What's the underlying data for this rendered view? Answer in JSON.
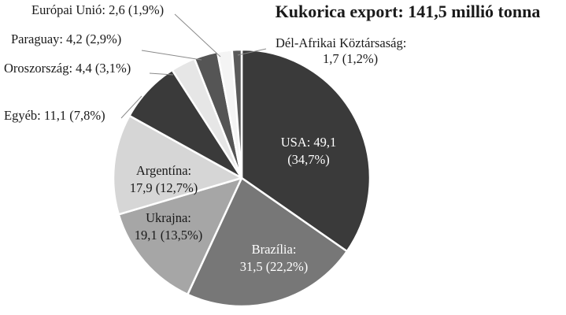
{
  "chart_data": {
    "type": "pie",
    "title": "Kukorica export: 141,5 millió tonna",
    "slices": [
      {
        "label": "USA: 49,1 (34,7%)",
        "name": "USA",
        "value": 49.1,
        "percent_label": "49,1 (34,7%)",
        "color": "#3a3a3a",
        "text_color": "#ffffff",
        "label_lines": [
          "USA: 49,1",
          "(34,7%)"
        ],
        "label_mode": "inside"
      },
      {
        "label": "Brazília: 31,5 (22,2%)",
        "name": "Brazília",
        "value": 31.5,
        "percent_label": "31,5 (22,2%)",
        "color": "#777777",
        "text_color": "#ffffff",
        "label_lines": [
          "Brazília:",
          "31,5 (22,2%)"
        ],
        "label_mode": "inside"
      },
      {
        "label": "Ukrajna: 19,1 (13,5%)",
        "name": "Ukrajna",
        "value": 19.1,
        "percent_label": "19,1 (13,5%)",
        "color": "#a6a6a6",
        "text_color": "#1a1a1a",
        "label_lines": [
          "Ukrajna:",
          "19,1 (13,5%)"
        ],
        "label_mode": "inside"
      },
      {
        "label": "Argentína: 17,9 (12,7%)",
        "name": "Argentína",
        "value": 17.9,
        "percent_label": "17,9 (12,7%)",
        "color": "#d6d6d6",
        "text_color": "#1a1a1a",
        "label_lines": [
          "Argentína:",
          "17,9 (12,7%)"
        ],
        "label_mode": "inside"
      },
      {
        "label": "Egyéb: 11,1 (7,8%)",
        "name": "Egyéb",
        "value": 11.1,
        "percent_label": "11,1 (7,8%)",
        "color": "#3a3a3a",
        "text_color": "#1a1a1a",
        "label_lines": [
          "Egyéb: 11,1 (7,8%)"
        ],
        "label_mode": "outside"
      },
      {
        "label": "Oroszország: 4,4 (3,1%)",
        "name": "Oroszország",
        "value": 4.4,
        "percent_label": "4,4 (3,1%)",
        "color": "#e6e6e6",
        "text_color": "#1a1a1a",
        "label_lines": [
          "Oroszország: 4,4 (3,1%)"
        ],
        "label_mode": "outside"
      },
      {
        "label": "Paraguay: 4,2 (2,9%)",
        "name": "Paraguay",
        "value": 4.2,
        "percent_label": "4,2 (2,9%)",
        "color": "#555555",
        "text_color": "#1a1a1a",
        "label_lines": [
          "Paraguay: 4,2 (2,9%)"
        ],
        "label_mode": "outside"
      },
      {
        "label": "Európai Unió: 2,6 (1,9%)",
        "name": "Európai Unió",
        "value": 2.6,
        "percent_label": "2,6 (1,9%)",
        "color": "#f4f4f4",
        "text_color": "#1a1a1a",
        "label_lines": [
          "Európai Unió: 2,6 (1,9%)"
        ],
        "label_mode": "outside"
      },
      {
        "label": "Dél-Afrikai Köztársaság: 1,7 (1,2%)",
        "name": "Dél-Afrikai Köztársaság",
        "value": 1.7,
        "percent_label": "1,7 (1,2%)",
        "color": "#5a5a5a",
        "text_color": "#1a1a1a",
        "label_lines": [
          "Dél-Afrikai Köztársaság:",
          "1,7 (1,2%)"
        ],
        "label_mode": "outside"
      }
    ],
    "start_angle_deg": 0,
    "direction": "clockwise",
    "legend": "none",
    "slice_border_color": "#ffffff"
  }
}
